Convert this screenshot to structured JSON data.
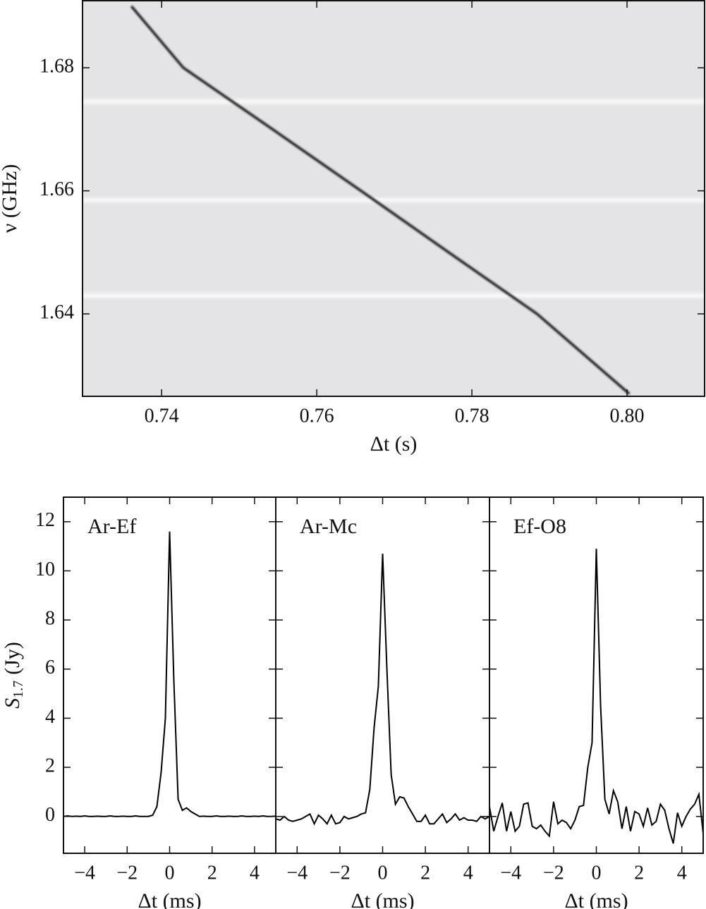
{
  "chart_data": [
    {
      "type": "spectrum",
      "xlabel": "Δt (s)",
      "ylabel": "ν (GHz)",
      "xlim": [
        0.7298,
        0.81
      ],
      "ylim": [
        1.6266,
        1.6909
      ],
      "xticks": [
        0.74,
        0.76,
        0.78,
        {
          "value": 0.8,
          "label": "0.80"
        }
      ],
      "yticks": [
        1.64,
        1.66,
        1.68
      ],
      "x": [
        0.7361,
        0.7428,
        0.7543,
        0.7657,
        0.777,
        0.7884,
        0.8003
      ],
      "values": [
        1.69,
        1.68,
        1.67,
        1.66,
        1.65,
        1.64,
        1.627
      ],
      "bands": [
        1.6745,
        1.6585,
        1.643
      ],
      "color": "#1a1a1a",
      "background": "#e4e4e7"
    },
    {
      "type": "line",
      "title": "Ar-Ef",
      "xlabel": "Δt (ms)",
      "ylabel_parts": [
        "S",
        "1.7",
        "(Jy)"
      ],
      "xlim": [
        -5,
        5
      ],
      "ylim": [
        -1.5,
        13
      ],
      "xticks": [
        {
          "value": -4,
          "label": "−4"
        },
        {
          "value": -2,
          "label": "−2"
        },
        0,
        2,
        4
      ],
      "yticks": [
        0,
        2,
        4,
        6,
        8,
        10,
        12
      ],
      "color": "#000",
      "x": [
        -5,
        -4.8,
        -4.6,
        -4.4,
        -4.2,
        -4,
        -3.8,
        -3.6,
        -3.4,
        -3.2,
        -3,
        -2.8,
        -2.6,
        -2.4,
        -2.2,
        -2,
        -1.8,
        -1.6,
        -1.4,
        -1.2,
        -1,
        -0.8,
        -0.6,
        -0.4,
        -0.2,
        0,
        0.2,
        0.4,
        0.6,
        0.8,
        1,
        1.2,
        1.4,
        1.6,
        1.8,
        2,
        2.2,
        2.4,
        2.6,
        2.8,
        3,
        3.2,
        3.4,
        3.6,
        3.8,
        4,
        4.2,
        4.4,
        4.6,
        4.8,
        5
      ],
      "values": [
        0,
        0.02,
        0,
        0.01,
        0,
        0.02,
        0,
        0,
        0.01,
        0,
        0,
        0.02,
        0,
        0,
        0.01,
        0,
        0,
        0.02,
        0,
        0,
        0,
        0.05,
        0.4,
        1.8,
        4.0,
        11.6,
        5.5,
        0.7,
        0.25,
        0.35,
        0.2,
        0.1,
        0,
        0.01,
        0,
        0,
        0.02,
        0,
        0,
        0.01,
        0,
        0,
        0.02,
        0,
        0,
        0.01,
        0,
        0.02,
        0,
        0,
        0.01
      ]
    },
    {
      "type": "line",
      "title": "Ar-Mc",
      "xlabel": "Δt (ms)",
      "xlim": [
        -5,
        5
      ],
      "ylim": [
        -1.5,
        13
      ],
      "xticks": [
        {
          "value": -4,
          "label": "−4"
        },
        {
          "value": -2,
          "label": "−2"
        },
        0,
        2,
        4
      ],
      "color": "#000",
      "x": [
        -5,
        -4.8,
        -4.6,
        -4.4,
        -4.2,
        -4,
        -3.8,
        -3.6,
        -3.4,
        -3.2,
        -3,
        -2.8,
        -2.6,
        -2.4,
        -2.2,
        -2,
        -1.8,
        -1.6,
        -1.4,
        -1.2,
        -1,
        -0.8,
        -0.6,
        -0.4,
        -0.2,
        0,
        0.2,
        0.4,
        0.6,
        0.8,
        1,
        1.2,
        1.4,
        1.6,
        1.8,
        2,
        2.2,
        2.4,
        2.6,
        2.8,
        3,
        3.2,
        3.4,
        3.6,
        3.8,
        4,
        4.2,
        4.4,
        4.6,
        4.8,
        5
      ],
      "values": [
        -0.1,
        -0.15,
        0,
        -0.15,
        -0.2,
        -0.15,
        -0.1,
        0,
        0.1,
        -0.3,
        0.05,
        -0.1,
        -0.3,
        0.05,
        -0.3,
        -0.25,
        0,
        -0.1,
        -0.05,
        0,
        0.1,
        0.15,
        1.1,
        3.6,
        5.3,
        10.7,
        6.0,
        1.7,
        0.5,
        0.8,
        0.75,
        0.4,
        0.1,
        -0.2,
        -0.2,
        0.05,
        -0.3,
        -0.3,
        -0.1,
        0.1,
        -0.25,
        -0.1,
        0.1,
        -0.15,
        -0.05,
        -0.15,
        -0.15,
        -0.2,
        0,
        -0.1,
        0
      ]
    },
    {
      "type": "line",
      "title": "Ef-O8",
      "xlabel": "Δt (ms)",
      "xlim": [
        -5,
        5
      ],
      "ylim": [
        -1.5,
        13
      ],
      "xticks": [
        {
          "value": -4,
          "label": "−4"
        },
        {
          "value": -2,
          "label": "−2"
        },
        0,
        2,
        4
      ],
      "color": "#000",
      "x": [
        -5,
        -4.8,
        -4.6,
        -4.4,
        -4.2,
        -4,
        -3.8,
        -3.6,
        -3.4,
        -3.2,
        -3,
        -2.8,
        -2.6,
        -2.4,
        -2.2,
        -2,
        -1.8,
        -1.6,
        -1.4,
        -1.2,
        -1,
        -0.8,
        -0.6,
        -0.4,
        -0.2,
        0,
        0.2,
        0.4,
        0.6,
        0.8,
        1,
        1.2,
        1.4,
        1.6,
        1.8,
        2,
        2.2,
        2.4,
        2.6,
        2.8,
        3,
        3.2,
        3.4,
        3.6,
        3.8,
        4,
        4.2,
        4.4,
        4.6,
        4.8,
        5
      ],
      "values": [
        0.4,
        -0.6,
        0,
        0.55,
        -0.6,
        0.2,
        -0.6,
        -0.4,
        0.5,
        0.55,
        -0.4,
        -0.5,
        -0.35,
        -0.6,
        -0.8,
        0.6,
        -0.3,
        -0.15,
        -0.25,
        -0.5,
        -0.15,
        0.4,
        0.45,
        2.0,
        3.0,
        10.9,
        4.5,
        0.7,
        0.1,
        1.05,
        0.6,
        -0.5,
        0.4,
        -0.6,
        0.2,
        0.1,
        -0.4,
        0.35,
        -0.35,
        -0.2,
        0.5,
        0.25,
        -0.5,
        -1.1,
        0.15,
        -0.4,
        0,
        0.3,
        0.5,
        0.9,
        -0.7
      ]
    }
  ]
}
